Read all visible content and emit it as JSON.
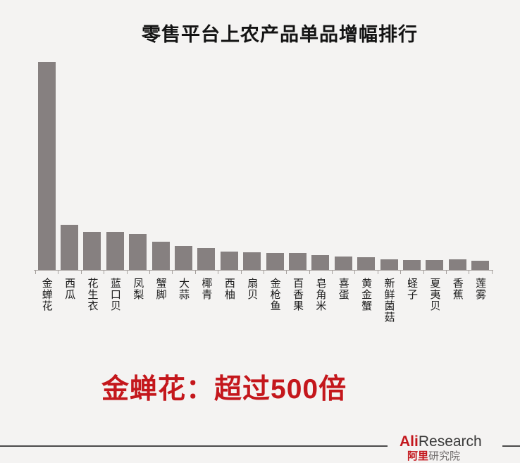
{
  "chart_data": {
    "type": "bar",
    "title": "零售平台上农产品单品增幅排行",
    "categories": [
      "金蝉花",
      "西瓜",
      "花生衣",
      "蓝口贝",
      "凤梨",
      "蟹脚",
      "大蒜",
      "椰青",
      "西柚",
      "扇贝",
      "金枪鱼",
      "百香果",
      "皂角米",
      "喜蛋",
      "黄金蟹",
      "新鲜菌菇",
      "蛏子",
      "夏夷贝",
      "香蕉",
      "莲雾"
    ],
    "values": [
      500,
      108,
      92,
      92,
      86,
      68,
      58,
      53,
      44,
      42,
      41,
      41,
      36,
      32,
      31,
      25,
      24,
      24,
      25,
      22
    ],
    "xlabel": "",
    "ylabel": "",
    "ylim": [
      0,
      513
    ],
    "grid": false,
    "legend": "none",
    "bar_color": "#868080",
    "annotation": "金蝉花：超过500倍"
  },
  "colors": {
    "background": "#f4f3f2",
    "bar": "#868080",
    "axis": "#a5a09d",
    "title_text": "#141414",
    "callout_red": "#c4171c",
    "logo_red": "#c3171d",
    "logo_gray": "#3a3a3a",
    "footer_line": "#4a4a4a"
  },
  "footer": {
    "logo_primary_red": "Ali",
    "logo_primary_rest": "Research",
    "logo_secondary_red": "阿里",
    "logo_secondary_rest": "研究院"
  }
}
